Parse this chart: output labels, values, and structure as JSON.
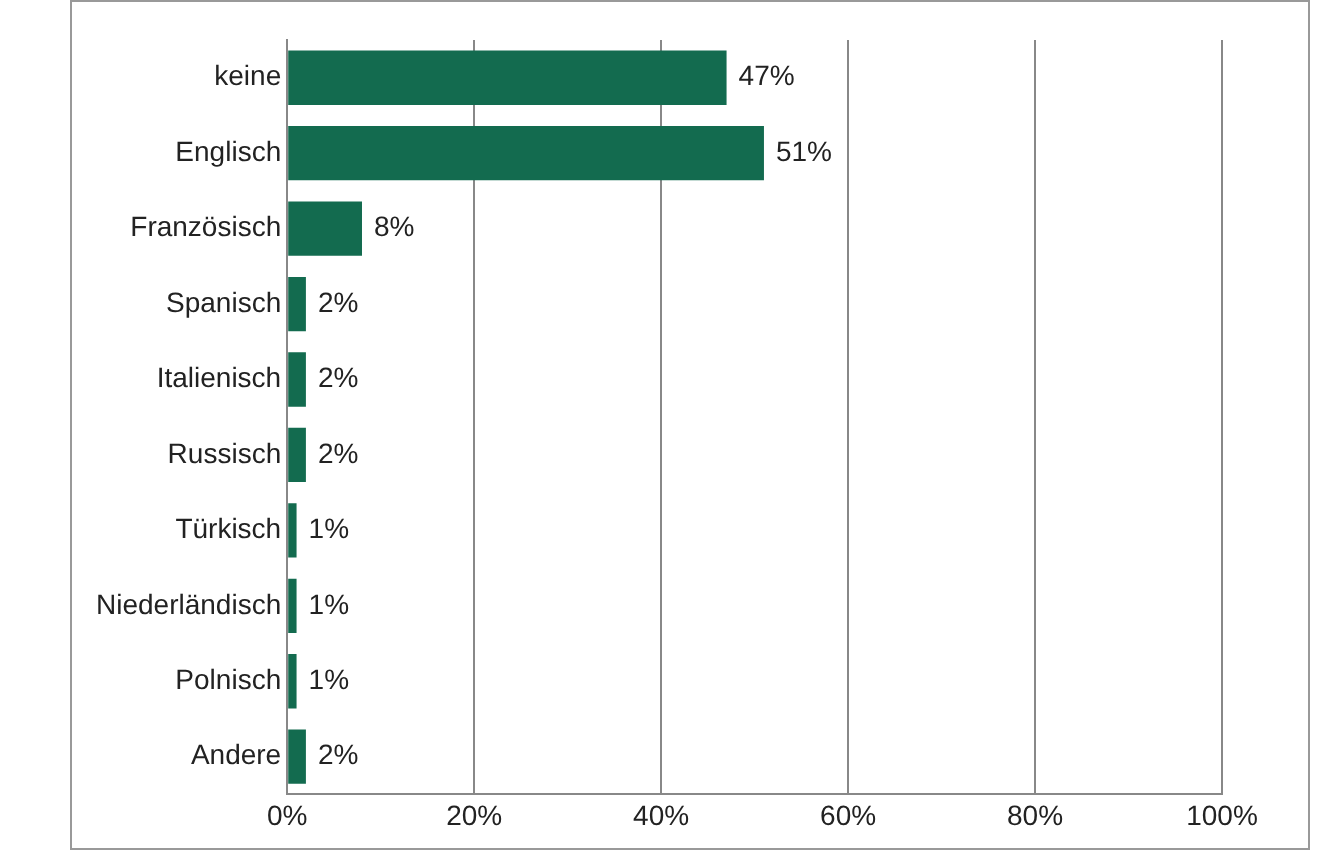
{
  "chart_data": {
    "type": "bar",
    "orientation": "horizontal",
    "categories": [
      "keine",
      "Englisch",
      "Französisch",
      "Spanisch",
      "Italienisch",
      "Russisch",
      "Türkisch",
      "Niederländisch",
      "Polnisch",
      "Andere"
    ],
    "values": [
      47,
      51,
      8,
      2,
      2,
      2,
      1,
      1,
      1,
      2
    ],
    "value_labels": [
      "47%",
      "51%",
      "8%",
      "2%",
      "2%",
      "2%",
      "1%",
      "1%",
      "1%",
      "2%"
    ],
    "color": "#136b4f",
    "xlim": [
      0,
      100
    ],
    "xticks": [
      {
        "value": 0,
        "label": "0%"
      },
      {
        "value": 20,
        "label": "20%"
      },
      {
        "value": 40,
        "label": "40%"
      },
      {
        "value": 60,
        "label": "60%"
      },
      {
        "value": 80,
        "label": "80%"
      },
      {
        "value": 100,
        "label": "100%"
      }
    ],
    "grid": "x",
    "legend": false
  }
}
